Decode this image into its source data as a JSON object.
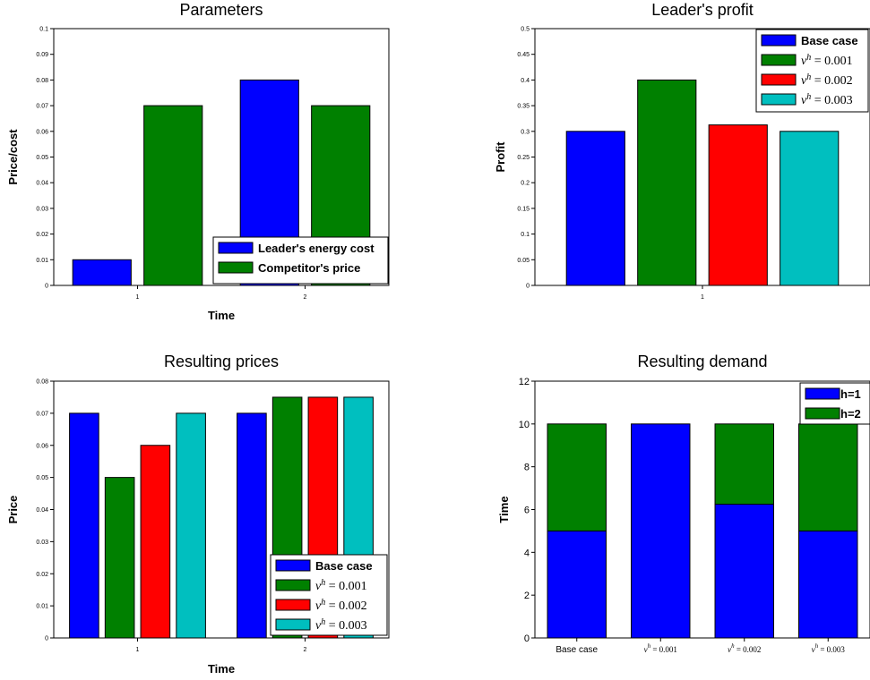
{
  "chart_data": [
    {
      "type": "bar",
      "title": "Parameters",
      "xlabel": "Time",
      "ylabel": "Price/cost",
      "categories": [
        "1",
        "2"
      ],
      "ylim": [
        0,
        0.1
      ],
      "yticks": [
        "0",
        "0.01",
        "0.02",
        "0.03",
        "0.04",
        "0.05",
        "0.06",
        "0.07",
        "0.08",
        "0.09",
        "0.1"
      ],
      "series": [
        {
          "name": "Leader's energy cost",
          "color": "#0000ff",
          "values": [
            0.01,
            0.08
          ]
        },
        {
          "name": "Competitor's price",
          "color": "#008000",
          "values": [
            0.07,
            0.07
          ]
        }
      ],
      "legend_position": "bottom-right"
    },
    {
      "type": "bar",
      "title": "Leader's profit",
      "xlabel": "",
      "ylabel": "Profit",
      "categories": [
        "1"
      ],
      "ylim": [
        0,
        0.5
      ],
      "yticks": [
        "0",
        "0.05",
        "0.1",
        "0.15",
        "0.2",
        "0.25",
        "0.3",
        "0.35",
        "0.4",
        "0.45",
        "0.5"
      ],
      "series": [
        {
          "name": "Base case",
          "color": "#0000ff",
          "values": [
            0.3
          ]
        },
        {
          "name": "v^h = 0.001",
          "color": "#008000",
          "values": [
            0.4
          ]
        },
        {
          "name": "v^h = 0.002",
          "color": "#ff0000",
          "values": [
            0.3125
          ]
        },
        {
          "name": "v^h = 0.003",
          "color": "#00bfbf",
          "values": [
            0.3
          ]
        }
      ],
      "legend_position": "top-right"
    },
    {
      "type": "bar",
      "title": "Resulting prices",
      "xlabel": "Time",
      "ylabel": "Price",
      "categories": [
        "1",
        "2"
      ],
      "ylim": [
        0,
        0.08
      ],
      "yticks": [
        "0",
        "0.01",
        "0.02",
        "0.03",
        "0.04",
        "0.05",
        "0.06",
        "0.07",
        "0.08"
      ],
      "series": [
        {
          "name": "Base case",
          "color": "#0000ff",
          "values": [
            0.07,
            0.07
          ]
        },
        {
          "name": "v^h = 0.001",
          "color": "#008000",
          "values": [
            0.05,
            0.075
          ]
        },
        {
          "name": "v^h = 0.002",
          "color": "#ff0000",
          "values": [
            0.06,
            0.075
          ]
        },
        {
          "name": "v^h = 0.003",
          "color": "#00bfbf",
          "values": [
            0.07,
            0.075
          ]
        }
      ],
      "legend_position": "bottom-right"
    },
    {
      "type": "bar",
      "stacked": true,
      "title": "Resulting demand",
      "xlabel": "",
      "ylabel": "Time",
      "categories": [
        "Base case",
        "v^h = 0.001",
        "v^h = 0.002",
        "v^h = 0.003"
      ],
      "ylim": [
        0,
        12
      ],
      "yticks": [
        "0",
        "2",
        "4",
        "6",
        "8",
        "10",
        "12"
      ],
      "series": [
        {
          "name": "h=1",
          "color": "#0000ff",
          "values": [
            5,
            10,
            6.25,
            5
          ]
        },
        {
          "name": "h=2",
          "color": "#008000",
          "values": [
            5,
            0,
            3.75,
            5
          ]
        }
      ],
      "legend_position": "top-right"
    }
  ]
}
